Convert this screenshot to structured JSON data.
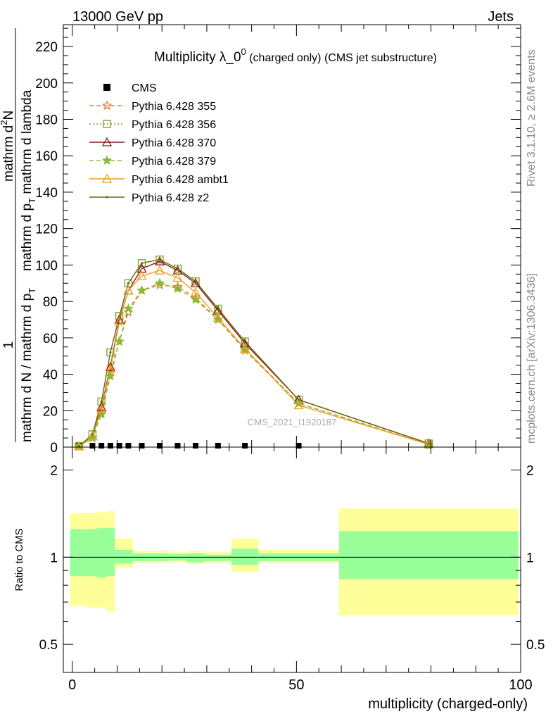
{
  "header": {
    "left": "13000 GeV pp",
    "right": "Jets"
  },
  "side_labels": {
    "rivet": "Rivet 3.1.10, ≥ 2.6M events",
    "mcplots": "mcplots.cern.ch [arXiv:1306.3436]"
  },
  "watermark": "CMS_2021_I1920187",
  "top_panel": {
    "title_main": "Multiplicity λ_0",
    "title_sup": "0",
    "title_rest": " (charged only) (CMS jet substructure)",
    "ylabel": {
      "numerator": "mathrm d",
      "numerator_sup": "2",
      "numerator_tail": "N",
      "denominator": "mathrm d p",
      "denominator_sub": "T",
      "denominator_tail": " mathrm d lambda",
      "prefactor_num": "1",
      "prefactor_den": "mathrm d N / mathrm d p",
      "prefactor_den_sub": "T"
    },
    "ytick_labels": [
      "0",
      "20",
      "40",
      "60",
      "80",
      "100",
      "120",
      "140",
      "160",
      "180",
      "200",
      "220"
    ]
  },
  "bottom_panel": {
    "ylabel": "Ratio to CMS",
    "ytick_labels": [
      "0.5",
      "1",
      "2"
    ],
    "xtick_labels": [
      "0",
      "50",
      "100"
    ],
    "xlabel": "multiplicity (charged-only)"
  },
  "legend": [
    {
      "label": "CMS",
      "color": "#000000",
      "marker": "square-filled",
      "line": "none"
    },
    {
      "label": "Pythia 6.428 355",
      "color": "#ee7733",
      "marker": "star-open",
      "line": "dashed"
    },
    {
      "label": "Pythia 6.428 356",
      "color": "#77a020",
      "marker": "square-open",
      "line": "dotted"
    },
    {
      "label": "Pythia 6.428 370",
      "color": "#8b1a1a",
      "marker": "triangle-open",
      "line": "solid"
    },
    {
      "label": "Pythia 6.428 379",
      "color": "#88bb33",
      "marker": "star-filled",
      "line": "dashed"
    },
    {
      "label": "Pythia 6.428 ambt1",
      "color": "#eea020",
      "marker": "triangle-open",
      "line": "solid"
    },
    {
      "label": "Pythia 6.428 z2",
      "color": "#6b6b10",
      "marker": "dot",
      "line": "solid"
    }
  ],
  "chart_data": {
    "type": "line",
    "title": "Multiplicity λ_0^0 (charged only) (CMS jet substructure)",
    "xlabel": "multiplicity (charged-only)",
    "ylabel": "1/(mathrm d N / mathrm d p_T) mathrm d^2N/(mathrm d p_T mathrm d lambda)",
    "xlim": [
      -2,
      100
    ],
    "ylim": [
      0,
      232
    ],
    "ratio_ylim_log": [
      0.4,
      2.4
    ],
    "x": [
      1.5,
      4.5,
      6.5,
      8.5,
      10.5,
      12.5,
      15.5,
      19.5,
      23.5,
      27.5,
      32.5,
      38.5,
      50.5,
      79.5
    ],
    "series": [
      {
        "name": "CMS",
        "values": [
          0.05,
          0.05,
          0.05,
          0.05,
          0.05,
          0.05,
          0.05,
          0.05,
          0.05,
          0.05,
          0.05,
          0.05,
          0.05,
          0.05
        ]
      },
      {
        "name": "Pythia 6.428 355",
        "values": [
          0.5,
          5,
          19,
          41,
          58,
          74,
          86,
          89,
          88,
          82,
          70,
          54,
          24,
          1.5
        ]
      },
      {
        "name": "Pythia 6.428 356",
        "values": [
          0.5,
          7,
          25,
          52,
          72,
          90,
          101,
          103,
          98,
          91,
          76,
          58,
          26,
          2
        ]
      },
      {
        "name": "Pythia 6.428 370",
        "values": [
          0.5,
          6,
          22,
          44,
          70,
          86,
          98,
          102,
          97,
          90,
          75,
          57,
          26,
          2
        ]
      },
      {
        "name": "Pythia 6.428 379",
        "values": [
          0.5,
          5,
          18,
          39,
          58,
          76,
          86,
          90,
          87,
          81,
          70,
          53,
          24,
          1.5
        ]
      },
      {
        "name": "Pythia 6.428 ambt1",
        "values": [
          0.5,
          6,
          21,
          43,
          69,
          86,
          94,
          97,
          93,
          85,
          71,
          54,
          23,
          1.5
        ]
      },
      {
        "name": "Pythia 6.428 z2",
        "values": [
          0.5,
          7,
          25,
          52,
          72,
          90,
          101,
          103,
          98,
          91,
          76,
          58,
          26,
          2
        ]
      }
    ],
    "ratio_bands": [
      {
        "x0": -0.5,
        "x1": 3,
        "inner": [
          0.86,
          1.25
        ],
        "outer": [
          0.68,
          1.42
        ]
      },
      {
        "x0": 3,
        "x1": 5.5,
        "inner": [
          0.86,
          1.25
        ],
        "outer": [
          0.67,
          1.42
        ]
      },
      {
        "x0": 5.5,
        "x1": 7.5,
        "inner": [
          0.85,
          1.26
        ],
        "outer": [
          0.67,
          1.43
        ]
      },
      {
        "x0": 7.5,
        "x1": 9.5,
        "inner": [
          0.86,
          1.26
        ],
        "outer": [
          0.65,
          1.44
        ]
      },
      {
        "x0": 9.5,
        "x1": 13.5,
        "inner": [
          0.95,
          1.06
        ],
        "outer": [
          0.92,
          1.16
        ]
      },
      {
        "x0": 13.5,
        "x1": 21.5,
        "inner": [
          0.97,
          1.03
        ],
        "outer": [
          0.96,
          1.05
        ]
      },
      {
        "x0": 21.5,
        "x1": 25.5,
        "inner": [
          0.975,
          1.025
        ],
        "outer": [
          0.965,
          1.04
        ]
      },
      {
        "x0": 25.5,
        "x1": 29.5,
        "inner": [
          0.96,
          1.03
        ],
        "outer": [
          0.95,
          1.05
        ]
      },
      {
        "x0": 29.5,
        "x1": 35.5,
        "inner": [
          0.97,
          1.02
        ],
        "outer": [
          0.96,
          1.04
        ]
      },
      {
        "x0": 35.5,
        "x1": 41.5,
        "inner": [
          0.94,
          1.07
        ],
        "outer": [
          0.89,
          1.16
        ]
      },
      {
        "x0": 41.5,
        "x1": 59.5,
        "inner": [
          0.97,
          1.03
        ],
        "outer": [
          0.96,
          1.06
        ]
      },
      {
        "x0": 59.5,
        "x1": 99.5,
        "inner": [
          0.84,
          1.23
        ],
        "outer": [
          0.63,
          1.47
        ]
      }
    ]
  }
}
